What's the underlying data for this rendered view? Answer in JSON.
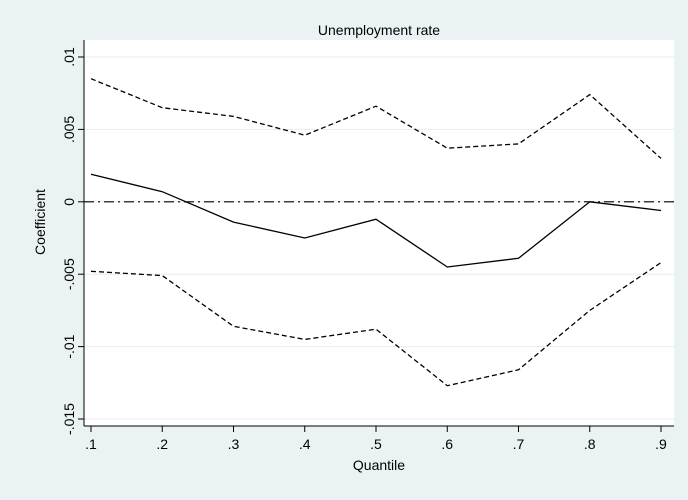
{
  "chart_data": {
    "type": "line",
    "title": "Unemployment rate",
    "xlabel": "Quantile",
    "ylabel": "Coefficient",
    "x": [
      0.1,
      0.2,
      0.3,
      0.4,
      0.5,
      0.6,
      0.7,
      0.8,
      0.9
    ],
    "x_tick_labels": [
      ".1",
      ".2",
      ".3",
      ".4",
      ".5",
      ".6",
      ".7",
      ".8",
      ".9"
    ],
    "y_ticks": [
      -0.015,
      -0.01,
      -0.005,
      0,
      0.005,
      0.01
    ],
    "y_tick_labels": [
      "-.015",
      "-.01",
      "-.005",
      "0",
      ".005",
      ".01"
    ],
    "xlim": [
      0.1,
      0.9
    ],
    "ylim": [
      -0.0155,
      0.0105
    ],
    "grid": true,
    "series": [
      {
        "style": "solid",
        "values": [
          0.0019,
          0.0007,
          -0.0014,
          -0.0025,
          -0.0012,
          -0.0045,
          -0.0039,
          0.0,
          -0.0006
        ]
      },
      {
        "style": "dashed",
        "values": [
          0.0085,
          0.0065,
          0.0059,
          0.0046,
          0.0066,
          0.0037,
          0.004,
          0.0074,
          0.003
        ]
      },
      {
        "style": "dashed",
        "values": [
          -0.0048,
          -0.0051,
          -0.0086,
          -0.0095,
          -0.0088,
          -0.0127,
          -0.0116,
          -0.0075,
          -0.0042
        ]
      }
    ],
    "reference_line": {
      "y": 0,
      "style": "dash-dot"
    },
    "colors": {
      "background": "#eaf2f3",
      "plot_area": "#ffffff",
      "grid": "#e6eded",
      "line": "#000000"
    }
  }
}
